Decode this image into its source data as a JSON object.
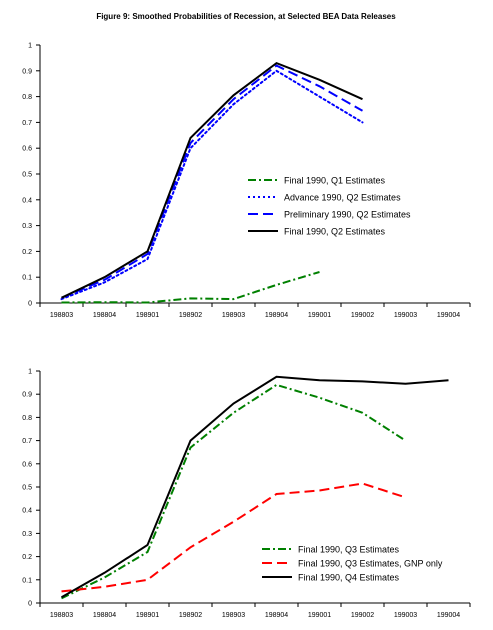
{
  "figure_title": "Figure 9: Smoothed Probabilities of Recession, at Selected BEA Data Releases",
  "chart_data": [
    {
      "type": "line",
      "categories": [
        "198803",
        "198804",
        "198901",
        "198902",
        "198903",
        "198904",
        "199001",
        "199002",
        "199003",
        "199004"
      ],
      "ylim": [
        0,
        1
      ],
      "yticks": [
        "0",
        "0.1",
        "0.2",
        "0.3",
        "0.4",
        "0.5",
        "0.6",
        "0.7",
        "0.8",
        "0.9",
        "1"
      ],
      "legend_position": "center-right",
      "grid": false,
      "series": [
        {
          "name": "Final 1990, Q1 Estimates",
          "color": "#008000",
          "style": "dashdot",
          "values": [
            0.002,
            0.003,
            0.002,
            0.018,
            0.015,
            0.07,
            0.12,
            null,
            null,
            null
          ]
        },
        {
          "name": "Advance 1990, Q2 Estimates",
          "color": "#0000ff",
          "style": "dot",
          "values": [
            0.015,
            0.08,
            0.17,
            0.6,
            0.77,
            0.9,
            0.8,
            0.7,
            null,
            null
          ]
        },
        {
          "name": "Preliminary 1990, Q2 Estimates",
          "color": "#0000ff",
          "style": "dash",
          "values": [
            0.02,
            0.09,
            0.19,
            0.62,
            0.79,
            0.92,
            0.84,
            0.745,
            null,
            null
          ]
        },
        {
          "name": "Final 1990, Q2 Estimates",
          "color": "#000000",
          "style": "solid",
          "values": [
            0.02,
            0.1,
            0.2,
            0.64,
            0.805,
            0.93,
            0.865,
            0.79,
            null,
            null
          ]
        }
      ]
    },
    {
      "type": "line",
      "categories": [
        "198803",
        "198804",
        "198901",
        "198902",
        "198903",
        "198904",
        "199001",
        "199002",
        "199003",
        "199004"
      ],
      "ylim": [
        0,
        1
      ],
      "yticks": [
        "0",
        "0.1",
        "0.2",
        "0.3",
        "0.4",
        "0.5",
        "0.6",
        "0.7",
        "0.8",
        "0.9",
        "1"
      ],
      "legend_position": "bottom-right",
      "grid": false,
      "series": [
        {
          "name": "Final 1990, Q3 Estimates",
          "color": "#008000",
          "style": "dashdot",
          "values": [
            0.02,
            0.11,
            0.22,
            0.67,
            0.82,
            0.94,
            0.885,
            0.82,
            0.7,
            null
          ]
        },
        {
          "name": "Final 1990, Q3 Estimates, GNP only",
          "color": "#ff0000",
          "style": "dash",
          "values": [
            0.05,
            0.07,
            0.1,
            0.24,
            0.35,
            0.47,
            0.485,
            0.515,
            0.455,
            null
          ]
        },
        {
          "name": "Final 1990, Q4 Estimates",
          "color": "#000000",
          "style": "solid",
          "values": [
            0.025,
            0.13,
            0.25,
            0.7,
            0.86,
            0.975,
            0.96,
            0.955,
            0.945,
            0.96
          ]
        }
      ]
    }
  ]
}
